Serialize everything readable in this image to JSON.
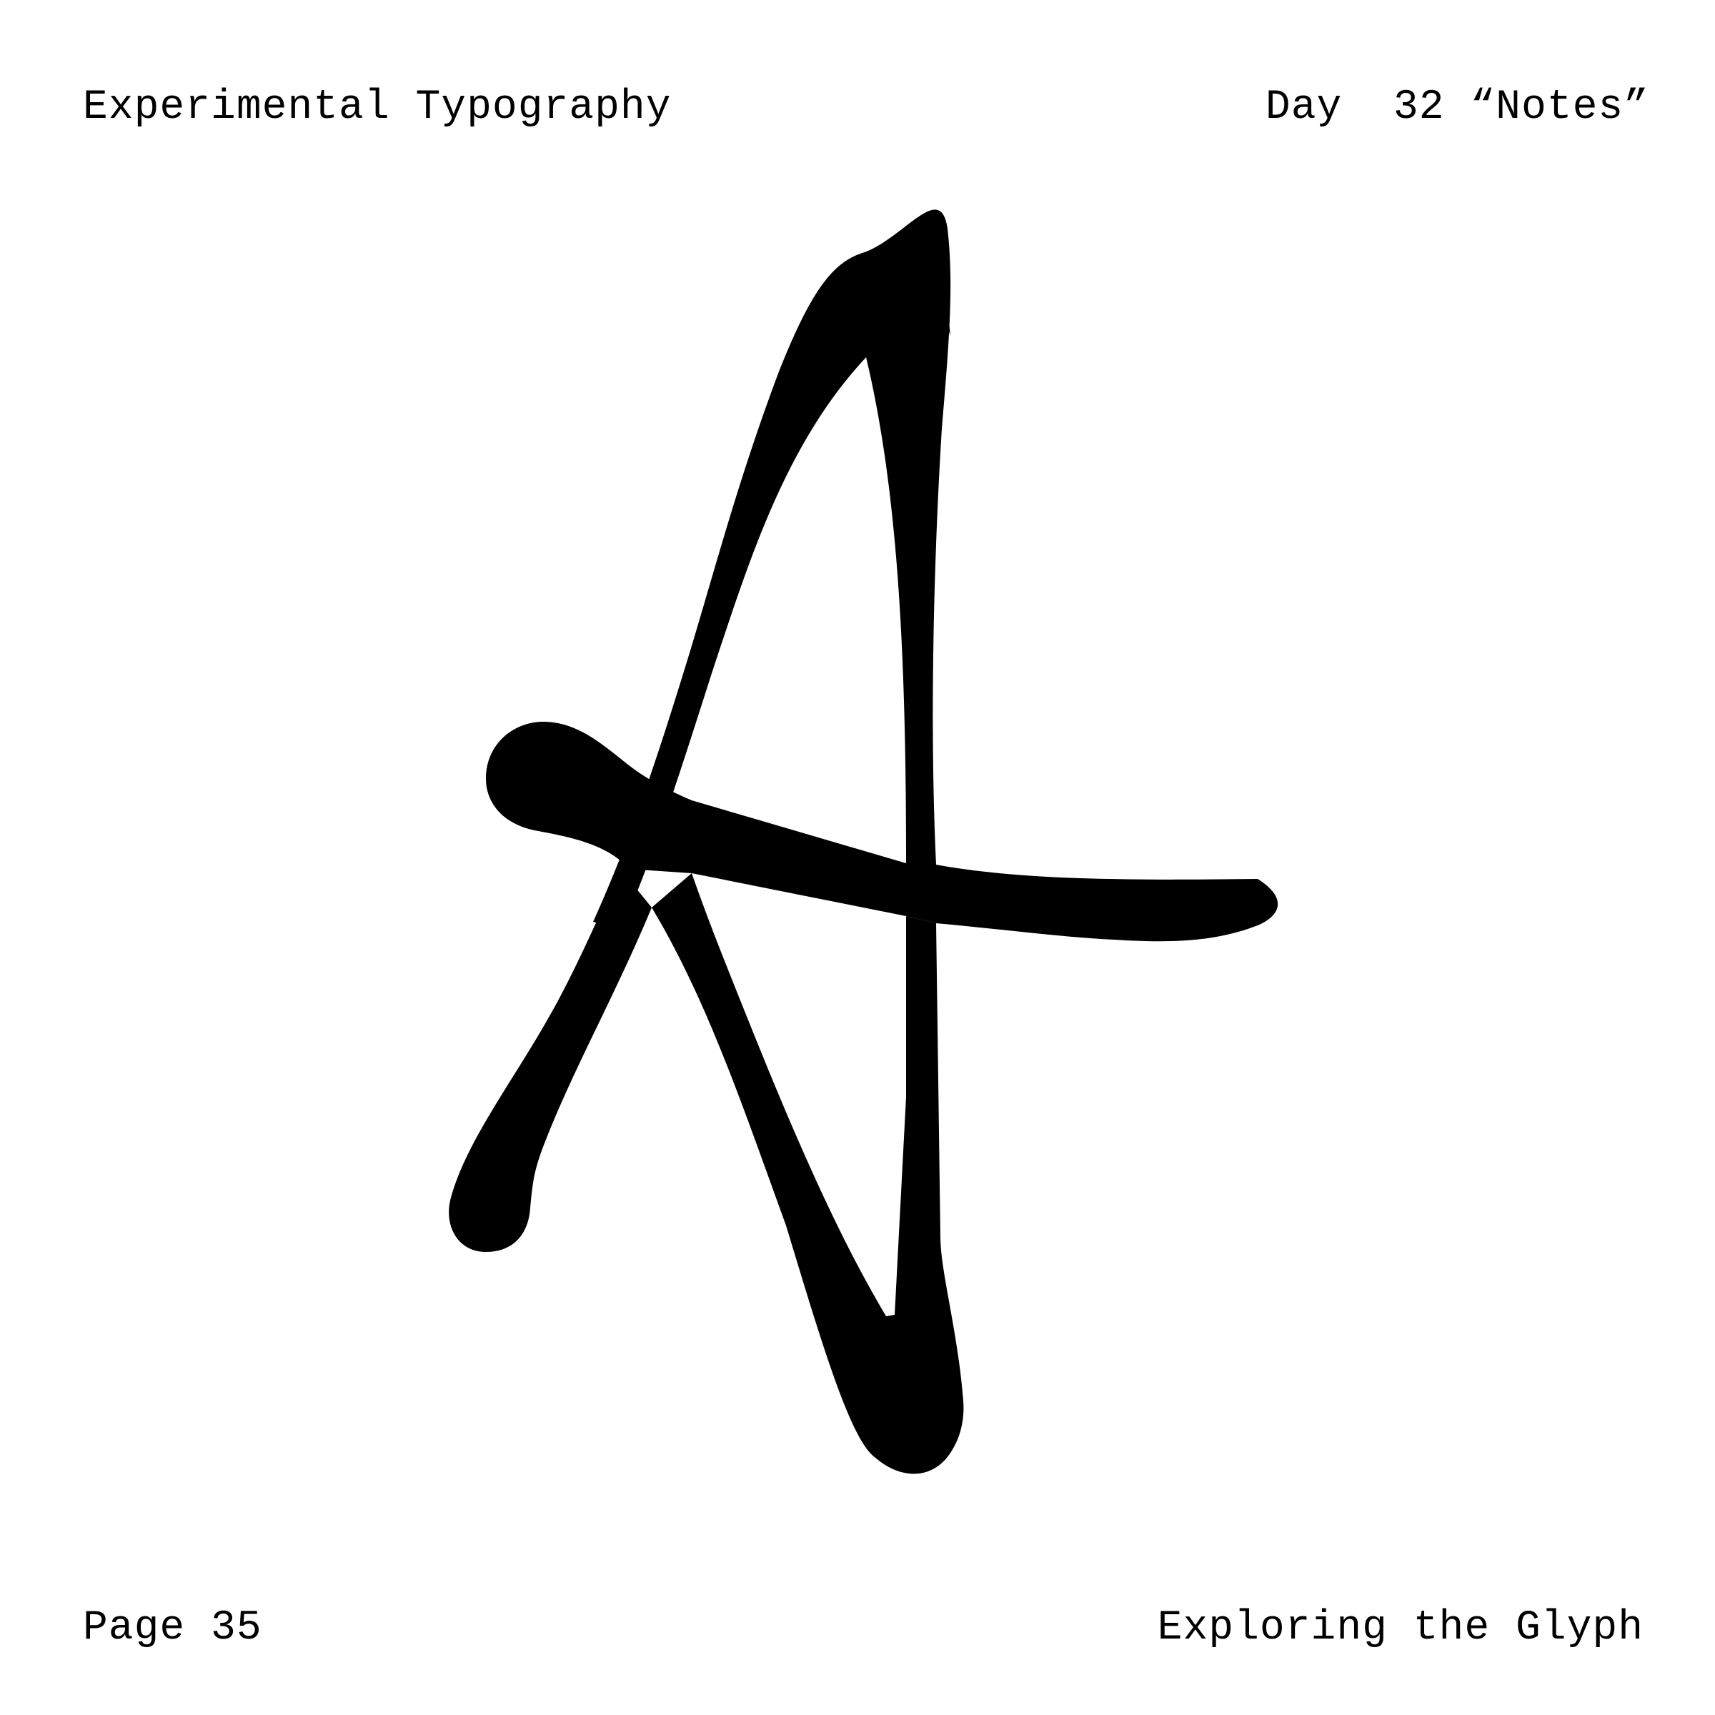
{
  "header": {
    "series_title": "Experimental Typography",
    "day_label": "Day  32 “Notes”"
  },
  "footer": {
    "page_label": "Page 35",
    "subtitle": "Exploring the Glyph"
  },
  "artwork": {
    "icon": "letter-a-glyph-icon",
    "ink_color": "#000000",
    "paper_color": "#ffffff"
  }
}
